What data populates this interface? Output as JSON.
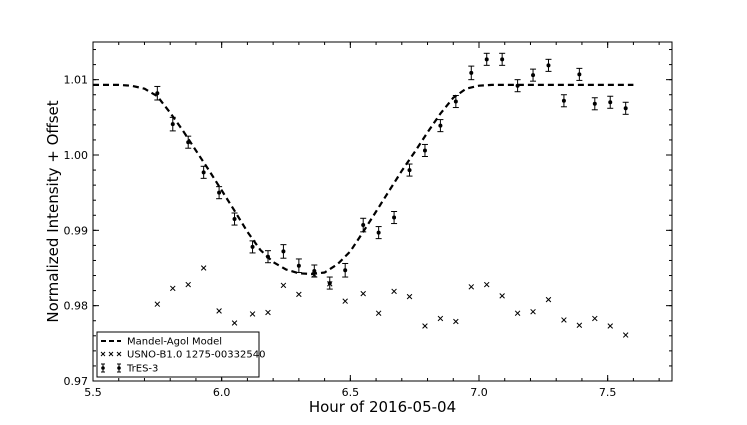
{
  "chart_data": {
    "type": "scatter",
    "xlabel": "Hour of 2016-05-04",
    "ylabel": "Normalized Intensity + Offset",
    "xlim": [
      5.5,
      7.75
    ],
    "ylim": [
      0.97,
      1.015
    ],
    "x_ticks": [
      5.5,
      6.0,
      6.5,
      7.0,
      7.5
    ],
    "x_tick_labels": [
      "5.5",
      "6.0",
      "6.5",
      "7.0",
      "7.5"
    ],
    "y_ticks": [
      0.97,
      0.98,
      0.99,
      1.0,
      1.01
    ],
    "y_tick_labels": [
      "0.97",
      "0.98",
      "0.99",
      "1.00",
      "1.01"
    ],
    "grid": false,
    "legend_position": "lower-left",
    "series": [
      {
        "name": "Mandel-Agol Model",
        "style": "dashed-line",
        "color": "#000000",
        "x": [
          5.5,
          5.6,
          5.65,
          5.7,
          5.75,
          5.8,
          5.85,
          5.9,
          5.95,
          6.0,
          6.05,
          6.1,
          6.15,
          6.2,
          6.25,
          6.3,
          6.35,
          6.4,
          6.45,
          6.5,
          6.55,
          6.6,
          6.65,
          6.7,
          6.75,
          6.8,
          6.85,
          6.9,
          6.95,
          7.0,
          7.05,
          7.6
        ],
        "y": [
          1.0093,
          1.0093,
          1.0092,
          1.0088,
          1.0078,
          1.0056,
          1.0032,
          1.0006,
          0.998,
          0.9953,
          0.9926,
          0.9898,
          0.9874,
          0.9858,
          0.9848,
          0.9843,
          0.9842,
          0.9844,
          0.9855,
          0.9872,
          0.9898,
          0.9925,
          0.9952,
          0.9979,
          1.0004,
          1.003,
          1.0055,
          1.0076,
          1.0088,
          1.0092,
          1.0093,
          1.0093
        ]
      },
      {
        "name": "USNO-B1.0 1275-00332540",
        "style": "x-markers",
        "color": "#000000",
        "x": [
          5.75,
          5.81,
          5.87,
          5.93,
          5.99,
          6.05,
          6.12,
          6.18,
          6.24,
          6.3,
          6.36,
          6.42,
          6.48,
          6.55,
          6.61,
          6.67,
          6.73,
          6.79,
          6.85,
          6.91,
          6.97,
          7.03,
          7.09,
          7.15,
          7.21,
          7.27,
          7.33,
          7.39,
          7.45,
          7.51,
          7.57
        ],
        "y": [
          0.9802,
          0.9823,
          0.9828,
          0.985,
          0.9793,
          0.9777,
          0.9789,
          0.9791,
          0.9827,
          0.9815,
          0.9841,
          0.9829,
          0.9806,
          0.9816,
          0.979,
          0.9819,
          0.9812,
          0.9773,
          0.9783,
          0.9779,
          0.9825,
          0.9828,
          0.9813,
          0.979,
          0.9792,
          0.9808,
          0.9781,
          0.9774,
          0.9783,
          0.9773,
          0.9761
        ]
      },
      {
        "name": "TrES-3",
        "style": "points-with-errorbars",
        "color": "#000000",
        "x": [
          5.75,
          5.81,
          5.87,
          5.93,
          5.99,
          6.05,
          6.12,
          6.18,
          6.24,
          6.3,
          6.36,
          6.42,
          6.48,
          6.55,
          6.61,
          6.67,
          6.73,
          6.79,
          6.85,
          6.91,
          6.97,
          7.03,
          7.09,
          7.15,
          7.21,
          7.27,
          7.33,
          7.39,
          7.45,
          7.51,
          7.57
        ],
        "y": [
          1.0082,
          1.0041,
          1.0017,
          0.9977,
          0.995,
          0.9915,
          0.9878,
          0.9865,
          0.9872,
          0.9853,
          0.9846,
          0.983,
          0.9847,
          0.9907,
          0.9897,
          0.9917,
          0.998,
          1.0006,
          1.0039,
          1.0071,
          1.0109,
          1.0127,
          1.0127,
          1.0092,
          1.0106,
          1.0119,
          1.0072,
          1.0107,
          1.0068,
          1.007,
          1.0062
        ],
        "yerr": [
          0.0009,
          0.0009,
          0.0008,
          0.0008,
          0.0008,
          0.0008,
          0.0008,
          0.0008,
          0.0009,
          0.0009,
          0.0008,
          0.0008,
          0.0009,
          0.0009,
          0.0008,
          0.0008,
          0.0008,
          0.0008,
          0.0008,
          0.0008,
          0.0009,
          0.0008,
          0.0008,
          0.0008,
          0.0008,
          0.0008,
          0.0008,
          0.0008,
          0.0008,
          0.0008,
          0.0008
        ]
      }
    ]
  }
}
